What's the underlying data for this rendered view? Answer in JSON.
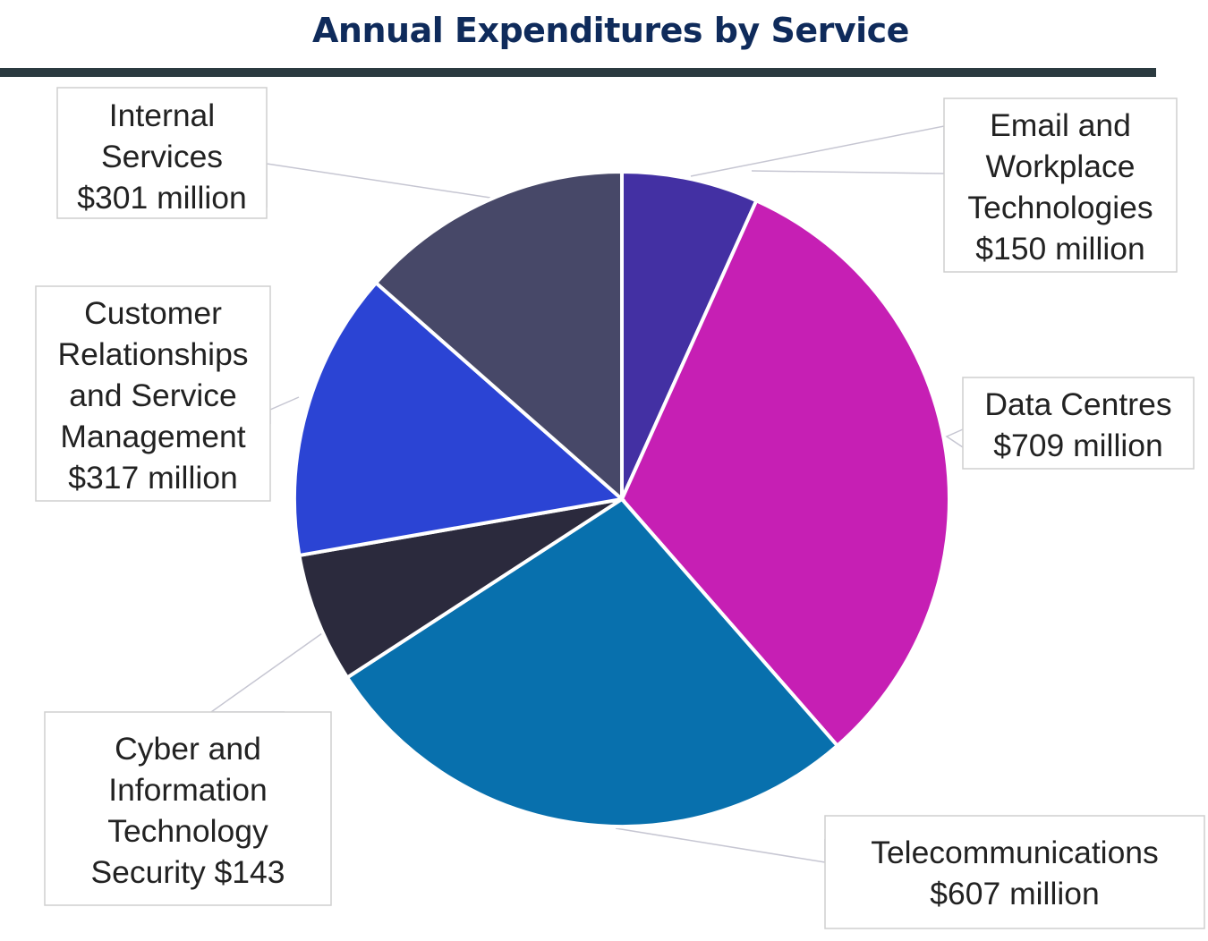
{
  "chart_data": {
    "type": "pie",
    "title": "Annual Expenditures by Service",
    "unit": "million $",
    "slices": [
      {
        "name": "Email and Workplace Technologies",
        "value": 150,
        "color": "#4330a3",
        "label_lines": [
          "Email and",
          "Workplace",
          "Technologies",
          "$150 million"
        ]
      },
      {
        "name": "Data Centres",
        "value": 709,
        "color": "#c61fb4",
        "label_lines": [
          "Data Centres",
          "$709 million"
        ]
      },
      {
        "name": "Telecommunications",
        "value": 607,
        "color": "#0870ad",
        "label_lines": [
          "Telecommunications",
          "$607 million"
        ]
      },
      {
        "name": "Cyber and Information Technology Security",
        "value": 143,
        "color": "#2b2a3d",
        "label_lines": [
          "Cyber and",
          "Information",
          "Technology",
          "Security $143"
        ]
      },
      {
        "name": "Customer Relationships and Service Management",
        "value": 317,
        "color": "#2b44d4",
        "label_lines": [
          "Customer",
          "Relationships",
          "and Service",
          "Management",
          "$317 million"
        ]
      },
      {
        "name": "Internal Services",
        "value": 301,
        "color": "#474868",
        "label_lines": [
          "Internal",
          "Services",
          "$301 million"
        ]
      }
    ]
  }
}
